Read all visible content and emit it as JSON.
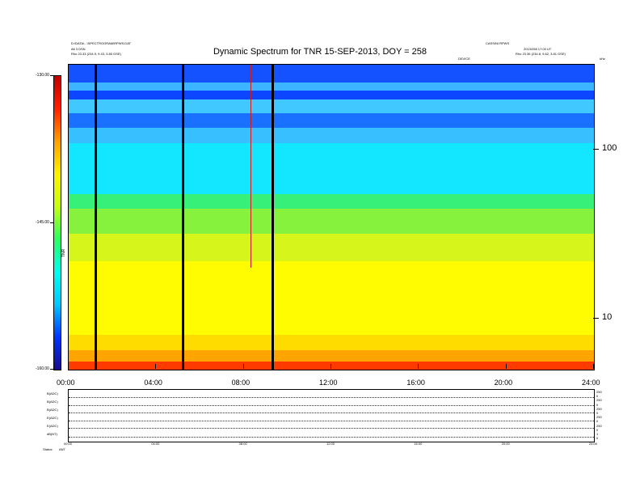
{
  "header": {
    "left_line1": "D:\\DATA\\...\\SPECTROGRAM\\RPWS.DAT",
    "left_line2": "Alt 3 DSN",
    "left_line3": "Rho   23.33 (234.9, 9.43, 3.80 GSE)",
    "right_line1": "CASSINI RPWS",
    "right_line2": "2013/258 17:00 UT",
    "right_line3": "Rho   23.36 (234.8, 9.62, 3.81 GSE)",
    "mid_note": "DEVICE",
    "corner": "kHz"
  },
  "chart_data": {
    "type": "heatmap",
    "title": "Dynamic Spectrum for TNR 15-SEP-2013, DOY = 258",
    "x_tick_labels": [
      "00:00",
      "04:00",
      "08:00",
      "12:00",
      "16:00",
      "20:00",
      "24:00"
    ],
    "x_hours": [
      0,
      4,
      8,
      12,
      16,
      20,
      24
    ],
    "y_scale": "log",
    "y_tick_labels": [
      "100",
      "10"
    ],
    "y_tick_values": [
      100,
      10
    ],
    "ylim": [
      5,
      320
    ],
    "colorbar": {
      "label": "TNR",
      "tick_labels": [
        "-130.00",
        "-145.00",
        "-160.00"
      ],
      "tick_values": [
        -130,
        -145,
        -160
      ],
      "range": [
        -160,
        -130
      ],
      "colors": [
        "#1a0a8a",
        "#0035ff",
        "#00c8ff",
        "#00ffee",
        "#2cff60",
        "#c6ff10",
        "#fff200",
        "#ffa000",
        "#ff2000",
        "#c00000"
      ]
    },
    "bands": [
      {
        "from_freq": 320,
        "to_freq": 250,
        "color": "#1552ff"
      },
      {
        "from_freq": 250,
        "to_freq": 225,
        "color": "#3cb4ff"
      },
      {
        "from_freq": 225,
        "to_freq": 200,
        "color": "#0d46ff"
      },
      {
        "from_freq": 200,
        "to_freq": 165,
        "color": "#40c8ff"
      },
      {
        "from_freq": 165,
        "to_freq": 135,
        "color": "#1a70ff"
      },
      {
        "from_freq": 135,
        "to_freq": 110,
        "color": "#38bfff"
      },
      {
        "from_freq": 110,
        "to_freq": 55,
        "color": "#13e6ff"
      },
      {
        "from_freq": 55,
        "to_freq": 45,
        "color": "#36f07a"
      },
      {
        "from_freq": 45,
        "to_freq": 32,
        "color": "#87f23e"
      },
      {
        "from_freq": 32,
        "to_freq": 22,
        "color": "#d6f51a"
      },
      {
        "from_freq": 22,
        "to_freq": 8,
        "color": "#fffb00"
      },
      {
        "from_freq": 8,
        "to_freq": 6.5,
        "color": "#ffdc00"
      },
      {
        "from_freq": 6.5,
        "to_freq": 5.6,
        "color": "#ffa400"
      },
      {
        "from_freq": 5.6,
        "to_freq": 5,
        "color": "#ff3a00"
      }
    ],
    "data_gaps_hours": [
      1.2,
      5.2,
      9.3
    ],
    "bursts_hours": [
      8.3
    ]
  },
  "lower_panel": {
    "row_labels": [
      "B(ADC)",
      "B(ADC)",
      "B(ADC)",
      "E(ADC)",
      "E(ADC)",
      "dB(NT)",
      "Status"
    ],
    "right_labels": [
      "250",
      "0",
      "250",
      "0",
      "250",
      "0",
      "250",
      "0",
      "250",
      "0",
      "1",
      "0"
    ],
    "x_labels": [
      "00:00",
      "04:00",
      "08:00",
      "12:00",
      "16:00",
      "20:00",
      "24:00"
    ],
    "status_label": "Status:",
    "status_value": "ANT"
  }
}
